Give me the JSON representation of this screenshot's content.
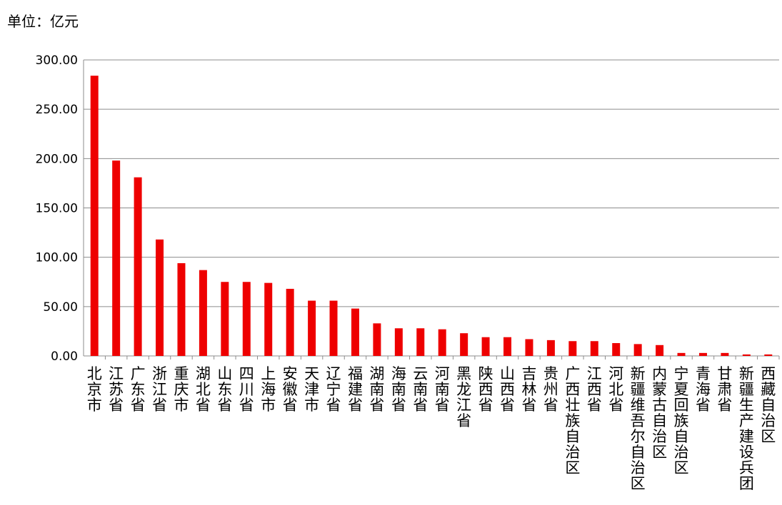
{
  "unit_label": "单位：亿元",
  "chart_data": {
    "type": "bar",
    "title": "",
    "xlabel": "",
    "ylabel": "",
    "ylim": [
      0,
      300
    ],
    "yticks": [
      "0.00",
      "50.00",
      "100.00",
      "150.00",
      "200.00",
      "250.00",
      "300.00"
    ],
    "grid": true,
    "bar_color": "#ee0000",
    "categories": [
      "北京市",
      "江苏省",
      "广东省",
      "浙江省",
      "重庆市",
      "湖北省",
      "山东省",
      "四川省",
      "上海市",
      "安徽省",
      "天津市",
      "辽宁省",
      "福建省",
      "湖南省",
      "海南省",
      "云南省",
      "河南省",
      "黑龙江省",
      "陕西省",
      "山西省",
      "吉林省",
      "贵州省",
      "广西壮族自治区",
      "江西省",
      "河北省",
      "新疆维吾尔自治区",
      "内蒙古自治区",
      "宁夏回族自治区",
      "青海省",
      "甘肃省",
      "新疆生产建设兵团",
      "西藏自治区"
    ],
    "values": [
      284,
      198,
      181,
      118,
      94,
      87,
      75,
      75,
      74,
      68,
      56,
      56,
      48,
      33,
      28,
      28,
      27,
      23,
      19,
      19,
      17,
      16,
      15,
      15,
      13,
      12,
      11,
      3,
      3,
      3,
      1.5,
      1.5
    ]
  }
}
